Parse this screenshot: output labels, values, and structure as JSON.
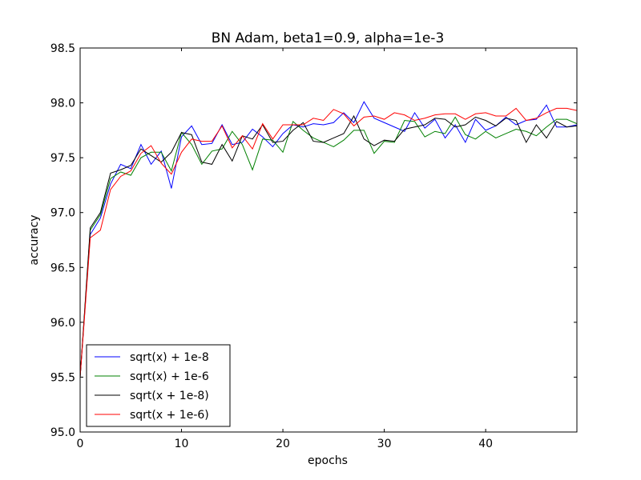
{
  "chart_data": {
    "type": "line",
    "title": "BN Adam, beta1=0.9, alpha=1e-3",
    "xlabel": "epochs",
    "ylabel": "accuracy",
    "xlim": [
      0,
      49
    ],
    "ylim": [
      95.0,
      98.5
    ],
    "xticks": [
      0,
      10,
      20,
      30,
      40
    ],
    "xtick_labels": [
      "0",
      "10",
      "20",
      "30",
      "40"
    ],
    "yticks": [
      95.0,
      95.5,
      96.0,
      96.5,
      97.0,
      97.5,
      98.0,
      98.5
    ],
    "ytick_labels": [
      "95.0",
      "95.5",
      "96.0",
      "96.5",
      "97.0",
      "97.5",
      "98.0",
      "98.5"
    ],
    "grid": false,
    "legend_position": "lower-left",
    "x": [
      0,
      1,
      2,
      3,
      4,
      5,
      6,
      7,
      8,
      9,
      10,
      11,
      12,
      13,
      14,
      15,
      16,
      17,
      18,
      19,
      20,
      21,
      22,
      23,
      24,
      25,
      26,
      27,
      28,
      29,
      30,
      31,
      32,
      33,
      34,
      35,
      36,
      37,
      38,
      39,
      40,
      41,
      42,
      43,
      44,
      45,
      46,
      47,
      48,
      49
    ],
    "series": [
      {
        "name": "sqrt(x) + 1e-8",
        "color": "#0000ff",
        "values": [
          95.5,
          96.8,
          96.95,
          97.26,
          97.44,
          97.4,
          97.62,
          97.44,
          97.56,
          97.22,
          97.69,
          97.79,
          97.62,
          97.63,
          97.8,
          97.62,
          97.64,
          97.76,
          97.69,
          97.6,
          97.72,
          97.8,
          97.78,
          97.81,
          97.8,
          97.82,
          97.91,
          97.82,
          98.01,
          97.86,
          97.82,
          97.78,
          97.74,
          97.91,
          97.77,
          97.85,
          97.68,
          97.8,
          97.64,
          97.85,
          97.75,
          97.79,
          97.87,
          97.8,
          97.84,
          97.85,
          97.98,
          97.78,
          97.78,
          97.8
        ]
      },
      {
        "name": "sqrt(x) + 1e-6",
        "color": "#008000",
        "values": [
          95.5,
          96.84,
          96.98,
          97.31,
          97.37,
          97.34,
          97.5,
          97.55,
          97.55,
          97.38,
          97.73,
          97.62,
          97.44,
          97.56,
          97.58,
          97.74,
          97.62,
          97.39,
          97.67,
          97.66,
          97.55,
          97.83,
          97.75,
          97.68,
          97.64,
          97.6,
          97.66,
          97.75,
          97.75,
          97.54,
          97.65,
          97.64,
          97.84,
          97.83,
          97.69,
          97.74,
          97.72,
          97.87,
          97.71,
          97.67,
          97.74,
          97.68,
          97.72,
          97.76,
          97.74,
          97.7,
          97.78,
          97.85,
          97.85,
          97.81
        ]
      },
      {
        "name": "sqrt(x + 1e-8)",
        "color": "#000000",
        "values": [
          95.5,
          96.86,
          97.0,
          97.36,
          97.39,
          97.43,
          97.58,
          97.52,
          97.46,
          97.55,
          97.73,
          97.71,
          97.46,
          97.44,
          97.62,
          97.47,
          97.7,
          97.67,
          97.8,
          97.64,
          97.65,
          97.75,
          97.82,
          97.65,
          97.64,
          97.68,
          97.72,
          97.88,
          97.67,
          97.61,
          97.66,
          97.65,
          97.76,
          97.78,
          97.8,
          97.86,
          97.85,
          97.78,
          97.8,
          97.87,
          97.84,
          97.79,
          97.86,
          97.84,
          97.64,
          97.8,
          97.68,
          97.83,
          97.78,
          97.79
        ]
      },
      {
        "name": "sqrt(x + 1e-6)",
        "color": "#ff0000",
        "values": [
          95.5,
          96.77,
          96.84,
          97.21,
          97.33,
          97.38,
          97.54,
          97.61,
          97.45,
          97.35,
          97.55,
          97.67,
          97.65,
          97.65,
          97.79,
          97.59,
          97.7,
          97.58,
          97.81,
          97.67,
          97.8,
          97.8,
          97.8,
          97.86,
          97.84,
          97.94,
          97.9,
          97.79,
          97.87,
          97.88,
          97.85,
          97.91,
          97.89,
          97.84,
          97.86,
          97.89,
          97.9,
          97.9,
          97.85,
          97.9,
          97.91,
          97.88,
          97.88,
          97.95,
          97.84,
          97.86,
          97.91,
          97.95,
          97.95,
          97.93
        ]
      }
    ]
  }
}
